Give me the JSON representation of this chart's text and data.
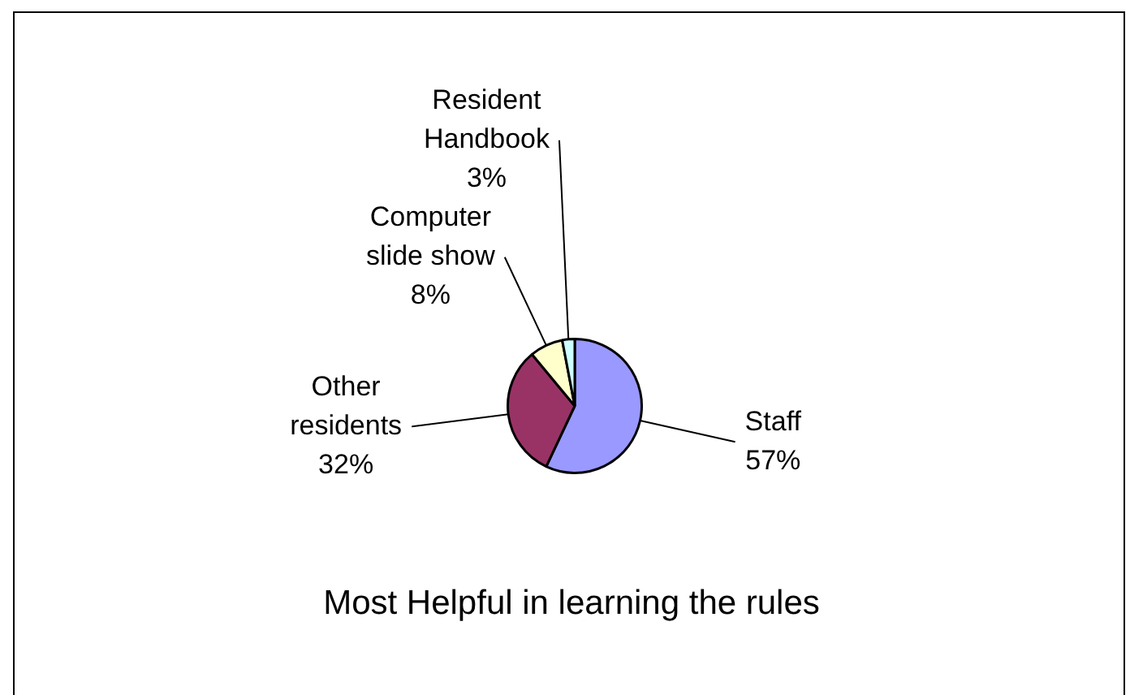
{
  "chart_data": {
    "type": "pie",
    "title": "Most Helpful in learning the rules",
    "categories": [
      "Staff",
      "Other residents",
      "Computer slide show",
      "Resident Handbook"
    ],
    "values": [
      57,
      32,
      8,
      3
    ],
    "value_labels": [
      "57%",
      "32%",
      "8%",
      "3%"
    ],
    "colors": [
      "#9999ff",
      "#993366",
      "#ffffcc",
      "#ccffff"
    ],
    "legend": false
  }
}
